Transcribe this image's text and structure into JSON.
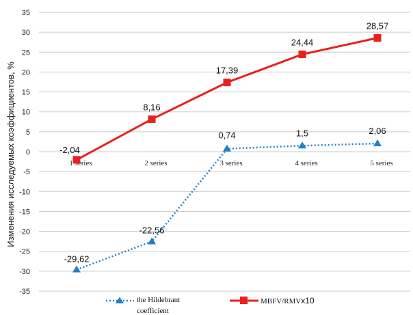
{
  "chart_data": {
    "type": "line",
    "title": "",
    "xlabel": "",
    "ylabel": "Изменения исследуемых коэффициентов, %",
    "categories": [
      "1 series",
      "2 series",
      "3 series",
      "4 series",
      "5 series"
    ],
    "ylim": [
      -35,
      35
    ],
    "yticks": [
      35,
      30,
      25,
      20,
      15,
      10,
      5,
      0,
      -5,
      -10,
      -15,
      -20,
      -25,
      -30,
      -35
    ],
    "grid": true,
    "legend_position": "bottom",
    "series": [
      {
        "name": "the Hildebrant coefficient",
        "name_lines": [
          "the Hildebrant",
          "coefficient"
        ],
        "values": [
          -29.62,
          -22.56,
          0.74,
          1.5,
          2.06
        ],
        "labels": [
          "-29,62",
          "-22,56",
          "0,74",
          "1,5",
          "2,06"
        ],
        "color": "#1f7fc4",
        "marker": "triangle",
        "line_style": "dotted"
      },
      {
        "name": "MBFV/RMVx10",
        "name_parts": [
          "MBFV/RMV",
          "x10"
        ],
        "values": [
          -2.04,
          8.16,
          17.39,
          24.44,
          28.57
        ],
        "labels": [
          "-2,04",
          "8,16",
          "17,39",
          "24,44",
          "28,57"
        ],
        "color": "#e8211c",
        "marker": "square",
        "line_style": "solid"
      }
    ]
  }
}
